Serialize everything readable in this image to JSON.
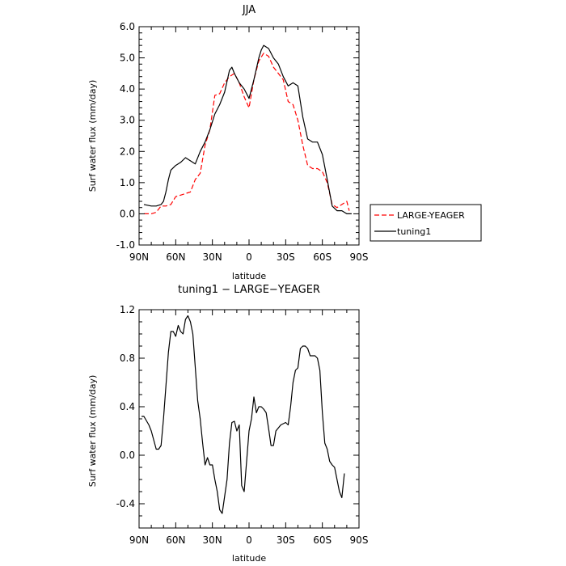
{
  "chart_data": [
    {
      "type": "line",
      "title": "JJA",
      "xlabel": "latitude",
      "ylabel": "Surf water flux (mm/day)",
      "xlim": [
        90,
        -90
      ],
      "ylim": [
        -1.0,
        6.0
      ],
      "xticks": [
        90,
        60,
        30,
        0,
        -30,
        -60,
        -90
      ],
      "xtick_labels": [
        "90N",
        "60N",
        "30N",
        "0",
        "30S",
        "60S",
        "90S"
      ],
      "yticks": [
        -1.0,
        0.0,
        1.0,
        2.0,
        3.0,
        4.0,
        5.0,
        6.0
      ],
      "ytick_labels": [
        "-1.0",
        "0.0",
        "1.0",
        "2.0",
        "3.0",
        "4.0",
        "5.0",
        "6.0"
      ],
      "legend_position": "outside-right",
      "series": [
        {
          "name": "LARGE-YEAGER",
          "color": "#ff0000",
          "dash": "dashed",
          "x": [
            86,
            80,
            76,
            72,
            68,
            64,
            60,
            56,
            52,
            48,
            44,
            40,
            36,
            32,
            28,
            24,
            20,
            16,
            12,
            8,
            4,
            0,
            -4,
            -8,
            -12,
            -16,
            -20,
            -24,
            -28,
            -32,
            -36,
            -40,
            -44,
            -48,
            -52,
            -56,
            -60,
            -64,
            -68,
            -72,
            -76,
            -80,
            -82
          ],
          "y": [
            0.0,
            0.0,
            0.05,
            0.25,
            0.25,
            0.3,
            0.55,
            0.6,
            0.65,
            0.7,
            1.1,
            1.3,
            2.2,
            2.7,
            3.8,
            3.85,
            4.2,
            4.4,
            4.5,
            4.2,
            3.75,
            3.4,
            4.3,
            4.9,
            5.15,
            5.05,
            4.7,
            4.5,
            4.3,
            3.6,
            3.5,
            3.0,
            2.2,
            1.55,
            1.45,
            1.45,
            1.35,
            1.0,
            0.3,
            0.2,
            0.3,
            0.4,
            0.1
          ]
        },
        {
          "name": "tuning1",
          "color": "#000000",
          "dash": "solid",
          "x": [
            86,
            80,
            76,
            72,
            70,
            68,
            66,
            64,
            60,
            56,
            52,
            48,
            44,
            40,
            36,
            32,
            28,
            24,
            20,
            16,
            14,
            12,
            8,
            4,
            0,
            -4,
            -8,
            -10,
            -12,
            -16,
            -20,
            -24,
            -28,
            -32,
            -36,
            -40,
            -44,
            -48,
            -52,
            -56,
            -60,
            -64,
            -68,
            -72,
            -76,
            -80,
            -84
          ],
          "y": [
            0.3,
            0.25,
            0.25,
            0.3,
            0.4,
            0.7,
            1.1,
            1.4,
            1.55,
            1.65,
            1.8,
            1.7,
            1.6,
            2.0,
            2.3,
            2.7,
            3.2,
            3.5,
            3.9,
            4.6,
            4.7,
            4.5,
            4.2,
            4.0,
            3.7,
            4.3,
            5.0,
            5.25,
            5.4,
            5.3,
            5.0,
            4.8,
            4.4,
            4.1,
            4.2,
            4.1,
            3.1,
            2.4,
            2.3,
            2.3,
            1.9,
            1.1,
            0.25,
            0.1,
            0.1,
            0.0,
            0.0
          ]
        }
      ]
    },
    {
      "type": "line",
      "title": "tuning1 − LARGE−YEAGER",
      "xlabel": "latitude",
      "ylabel": "Surf water flux (mm/day)",
      "xlim": [
        90,
        -90
      ],
      "ylim": [
        -0.6,
        1.2
      ],
      "xticks": [
        90,
        60,
        30,
        0,
        -30,
        -60,
        -90
      ],
      "xtick_labels": [
        "90N",
        "60N",
        "30N",
        "0",
        "30S",
        "60S",
        "90S"
      ],
      "yticks": [
        -0.4,
        0.0,
        0.4,
        0.8,
        1.2
      ],
      "ytick_labels": [
        "-0.4",
        "0.0",
        "0.4",
        "0.8",
        "1.2"
      ],
      "series": [
        {
          "color": "#000000",
          "dash": "solid",
          "x": [
            88,
            86,
            82,
            80,
            76,
            74,
            72,
            70,
            66,
            64,
            62,
            60,
            58,
            56,
            54,
            52,
            50,
            48,
            46,
            42,
            40,
            38,
            36,
            34,
            32,
            30,
            28,
            26,
            24,
            22,
            18,
            16,
            14,
            12,
            10,
            8,
            6,
            4,
            2,
            0,
            -2,
            -4,
            -6,
            -8,
            -10,
            -12,
            -14,
            -16,
            -18,
            -20,
            -22,
            -26,
            -30,
            -32,
            -34,
            -36,
            -38,
            -40,
            -42,
            -44,
            -46,
            -48,
            -50,
            -52,
            -54,
            -56,
            -58,
            -60,
            -62,
            -64,
            -66,
            -68,
            -70,
            -72,
            -74,
            -76,
            -78
          ],
          "y": [
            0.32,
            0.32,
            0.25,
            0.2,
            0.05,
            0.05,
            0.08,
            0.3,
            0.85,
            1.02,
            1.02,
            0.98,
            1.07,
            1.02,
            1.0,
            1.12,
            1.15,
            1.1,
            1.0,
            0.45,
            0.3,
            0.1,
            -0.08,
            -0.02,
            -0.08,
            -0.08,
            -0.2,
            -0.3,
            -0.45,
            -0.48,
            -0.2,
            0.1,
            0.27,
            0.28,
            0.2,
            0.25,
            -0.25,
            -0.3,
            -0.05,
            0.2,
            0.3,
            0.48,
            0.35,
            0.4,
            0.4,
            0.38,
            0.35,
            0.22,
            0.08,
            0.08,
            0.2,
            0.25,
            0.27,
            0.25,
            0.4,
            0.6,
            0.7,
            0.72,
            0.88,
            0.9,
            0.9,
            0.88,
            0.82,
            0.82,
            0.82,
            0.8,
            0.7,
            0.35,
            0.1,
            0.05,
            -0.05,
            -0.08,
            -0.1,
            -0.2,
            -0.3,
            -0.35,
            -0.15
          ]
        }
      ]
    }
  ]
}
